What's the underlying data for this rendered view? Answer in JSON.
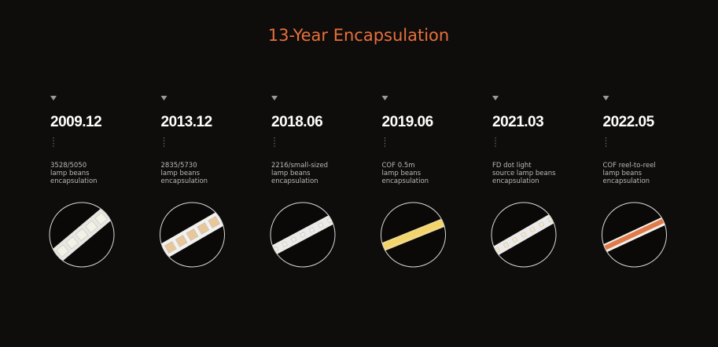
{
  "title": "13-Year Encapsulation",
  "milestones": [
    {
      "date": "2009.12",
      "description": [
        "3528/5050",
        "lamp beans",
        "encapsulation"
      ]
    },
    {
      "date": "2013.12",
      "description": [
        "2835/5730",
        "lamp beans",
        "encapsulation"
      ]
    },
    {
      "date": "2018.06",
      "description": [
        "2216/small-sized",
        "lamp beans",
        "encapsulation"
      ]
    },
    {
      "date": "2019.06",
      "description": [
        "COF 0.5m",
        "lamp beans",
        "encapsulation"
      ]
    },
    {
      "date": "2021.03",
      "description": [
        "FD dot light",
        "source lamp beans",
        "encapsulation"
      ]
    },
    {
      "date": "2022.05",
      "description": [
        "COF reel-to-reel",
        "lamp beans",
        "encapsulation"
      ]
    }
  ]
}
